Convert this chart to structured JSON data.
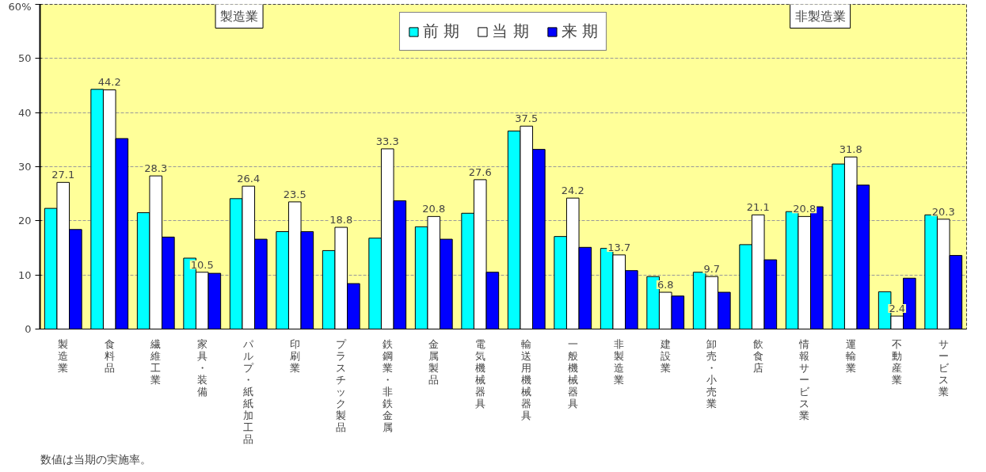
{
  "chart_data": {
    "type": "bar",
    "categories": [
      "製造業",
      "食料品",
      "繊維工業",
      "家具・装備",
      "パルプ・紙紙加工品",
      "印刷業",
      "プラスチック製品",
      "鉄鋼業・非鉄金属",
      "金属製品",
      "電気機械器具",
      "輸送用機械器具",
      "一般機械器具",
      "非製造業",
      "建設業",
      "卸売・小売業",
      "飲食店",
      "情報サービス業",
      "運輸業",
      "不動産業",
      "サービス業"
    ],
    "series": [
      {
        "name": "前 期",
        "color": "#00ffff",
        "values": [
          22.3,
          44.3,
          21.5,
          13.1,
          24.1,
          18.0,
          14.5,
          16.8,
          18.9,
          21.4,
          36.6,
          17.1,
          14.9,
          9.7,
          10.5,
          15.6,
          21.7,
          30.5,
          6.9,
          21.1
        ]
      },
      {
        "name": "当 期",
        "color": "#ffffff",
        "values": [
          27.1,
          44.2,
          28.3,
          10.5,
          26.4,
          23.5,
          18.8,
          33.3,
          20.8,
          27.6,
          37.5,
          24.2,
          13.7,
          6.8,
          9.7,
          21.1,
          20.8,
          31.8,
          2.4,
          20.3
        ],
        "value_labels": [
          "27.1",
          "44.2",
          "28.3",
          "10.5",
          "26.4",
          "23.5",
          "18.8",
          "33.3",
          "20.8",
          "27.6",
          "37.5",
          "24.2",
          "13.7",
          "6.8",
          "9.7",
          "21.1",
          "20.8",
          "31.8",
          "2.4",
          "20.3"
        ]
      },
      {
        "name": "来 期",
        "color": "#0000ff",
        "values": [
          18.4,
          35.2,
          17.0,
          10.3,
          16.6,
          18.0,
          8.4,
          23.7,
          16.6,
          10.5,
          33.2,
          15.1,
          10.8,
          6.1,
          6.8,
          12.8,
          22.6,
          26.6,
          9.4,
          13.6
        ]
      }
    ],
    "ylim": [
      0,
      60
    ],
    "yticks": [
      0,
      10,
      20,
      30,
      40,
      50,
      {
        "value": 60,
        "label": "60%"
      }
    ],
    "grid": "y",
    "legend": "top",
    "annotations": [
      "製造業",
      "非製造業",
      "数値は当期の実施率。"
    ]
  }
}
